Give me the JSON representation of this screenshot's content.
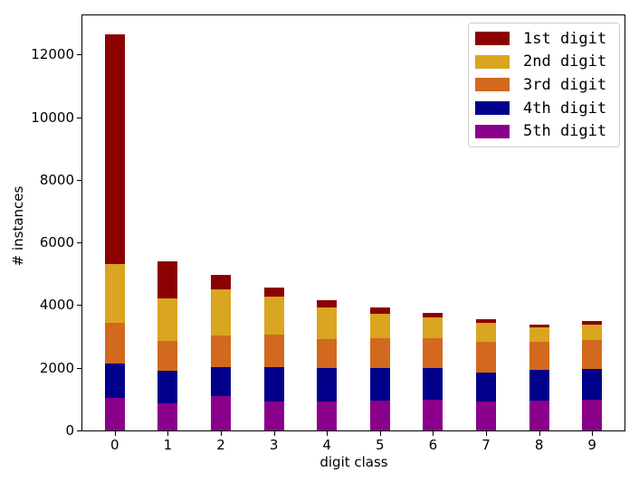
{
  "chart_data": {
    "type": "bar",
    "stacked": true,
    "title": "",
    "xlabel": "digit class",
    "ylabel": "# instances",
    "categories": [
      "0",
      "1",
      "2",
      "3",
      "4",
      "5",
      "6",
      "7",
      "8",
      "9"
    ],
    "series": [
      {
        "name": "1st digit",
        "color": "#8b0000",
        "values": [
          7350,
          1170,
          460,
          290,
          220,
          200,
          160,
          130,
          110,
          130
        ]
      },
      {
        "name": "2nd digit",
        "color": "#daa520",
        "values": [
          1860,
          1370,
          1490,
          1230,
          1030,
          790,
          660,
          610,
          460,
          470
        ]
      },
      {
        "name": "3rd digit",
        "color": "#d2691e",
        "values": [
          1300,
          940,
          1010,
          1040,
          920,
          940,
          950,
          980,
          880,
          940
        ]
      },
      {
        "name": "4th digit",
        "color": "#00008b",
        "values": [
          1100,
          1050,
          920,
          1080,
          1060,
          1030,
          1010,
          910,
          980,
          980
        ]
      },
      {
        "name": "5th digit",
        "color": "#8b008b",
        "values": [
          1050,
          860,
          1090,
          930,
          930,
          960,
          980,
          930,
          960,
          980
        ]
      }
    ],
    "stack_order_bottom_to_top": [
      "5th digit",
      "4th digit",
      "3rd digit",
      "2nd digit",
      "1st digit"
    ],
    "totals_per_category": [
      12660,
      5390,
      4970,
      4570,
      4160,
      3920,
      3760,
      3560,
      3390,
      3500
    ],
    "ylim": [
      0,
      13250
    ],
    "yticks": [
      0,
      2000,
      4000,
      6000,
      8000,
      10000,
      12000
    ],
    "xlim": [
      -0.61,
      9.61
    ],
    "grid": false,
    "legend": {
      "position": "upper right",
      "entries": [
        "1st digit",
        "2nd digit",
        "3rd digit",
        "4th digit",
        "5th digit"
      ]
    }
  }
}
